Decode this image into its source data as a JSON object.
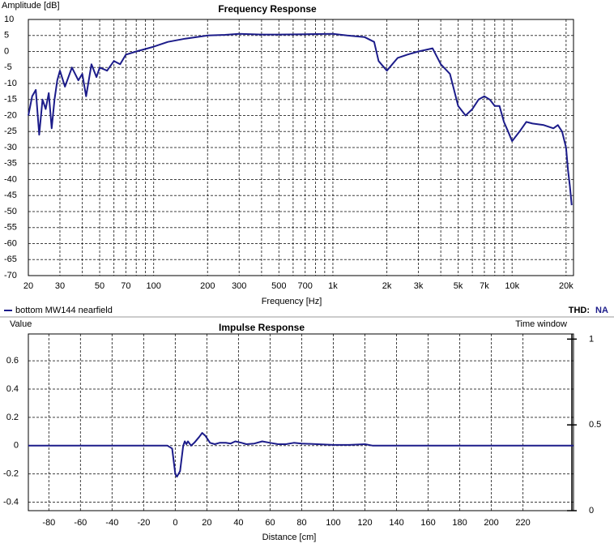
{
  "chart_data": [
    {
      "type": "line",
      "title": "Frequency Response",
      "x_label": "Frequency [Hz]",
      "y_label": "Amplitude [dB]",
      "x_scale": "log",
      "xlim": [
        20,
        22000
      ],
      "xticks": [
        20,
        30,
        50,
        70,
        100,
        200,
        300,
        500,
        700,
        {
          "value": 1000,
          "label": "1k"
        },
        {
          "value": 2000,
          "label": "2k"
        },
        {
          "value": 3000,
          "label": "3k"
        },
        {
          "value": 5000,
          "label": "5k"
        },
        {
          "value": 7000,
          "label": "7k"
        },
        {
          "value": 10000,
          "label": "10k"
        },
        {
          "value": 20000,
          "label": "20k"
        }
      ],
      "x_minor_ticks": [
        40,
        60,
        80,
        90,
        400,
        600,
        800,
        900,
        4000,
        6000,
        8000,
        9000
      ],
      "ylim": [
        -70,
        10
      ],
      "yticks": [
        10,
        5,
        0,
        -5,
        -10,
        -15,
        -20,
        -25,
        -30,
        -35,
        -40,
        -45,
        -50,
        -55,
        -60,
        -65,
        -70
      ],
      "grid": true,
      "thd_label": "THD:",
      "thd_value": "NA",
      "x": [
        20,
        21,
        22,
        23,
        24,
        25,
        26,
        27,
        28,
        29,
        30,
        32,
        35,
        38,
        40,
        42,
        45,
        48,
        50,
        55,
        60,
        65,
        70,
        80,
        100,
        120,
        150,
        200,
        250,
        300,
        400,
        500,
        700,
        1000,
        1200,
        1500,
        1700,
        1800,
        2000,
        2300,
        2600,
        3000,
        3300,
        3600,
        4000,
        4500,
        5000,
        5500,
        6000,
        6500,
        7000,
        7500,
        8000,
        8500,
        9000,
        9500,
        10000,
        11000,
        12000,
        13000,
        15000,
        17000,
        18000,
        19000,
        20000,
        20500,
        21000,
        21500
      ],
      "series": [
        {
          "name": "bottom MW144 nearfield",
          "color": "#1c1c8a",
          "values": [
            -20,
            -14,
            -12,
            -26,
            -15,
            -18,
            -13,
            -24,
            -15,
            -9,
            -6,
            -11,
            -5,
            -9,
            -7,
            -14,
            -4,
            -8,
            -5,
            -6,
            -3,
            -4,
            -1,
            0,
            1.5,
            3,
            4,
            5,
            5.2,
            5.5,
            5.3,
            5.3,
            5.4,
            5.5,
            5,
            4.5,
            3,
            -3,
            -6,
            -2,
            -1,
            0,
            0.5,
            1,
            -4,
            -7,
            -17,
            -20,
            -18,
            -15,
            -14,
            -15,
            -17,
            -17,
            -22,
            -25,
            -28,
            -25,
            -22,
            -22.5,
            -23,
            -24,
            -23,
            -25,
            -30,
            -37,
            -42,
            -48
          ]
        }
      ]
    },
    {
      "type": "line",
      "title": "Impulse Response",
      "x_label": "Distance [cm]",
      "y_label": "Value",
      "y2_label": "Time window",
      "xlim": [
        -93,
        252
      ],
      "xticks": [
        -80,
        -60,
        -40,
        -20,
        0,
        20,
        40,
        60,
        80,
        100,
        120,
        140,
        160,
        180,
        200,
        220
      ],
      "ylim": [
        -0.46,
        0.79
      ],
      "yticks": [
        0.6,
        0.4,
        0.2,
        0,
        -0.2,
        -0.4
      ],
      "y2lim": [
        0,
        1.03
      ],
      "y2ticks": [
        1,
        0.5,
        0
      ],
      "grid": true,
      "x": [
        -93,
        -5,
        -2,
        0,
        1,
        3,
        5,
        6,
        7,
        8,
        10,
        12,
        15,
        17,
        19,
        22,
        25,
        28,
        32,
        35,
        38,
        42,
        45,
        50,
        55,
        60,
        65,
        70,
        75,
        80,
        90,
        100,
        110,
        120,
        125,
        252
      ],
      "series": [
        {
          "color": "#1c1c8a",
          "values": [
            0,
            0,
            -0.02,
            -0.2,
            -0.22,
            -0.18,
            0,
            0.03,
            0.01,
            0.03,
            0,
            0.02,
            0.06,
            0.09,
            0.07,
            0.02,
            0.01,
            0.02,
            0.02,
            0.015,
            0.03,
            0.02,
            0.01,
            0.015,
            0.03,
            0.02,
            0.01,
            0.01,
            0.02,
            0.015,
            0.01,
            0.005,
            0.005,
            0.01,
            0,
            0
          ]
        }
      ]
    }
  ]
}
